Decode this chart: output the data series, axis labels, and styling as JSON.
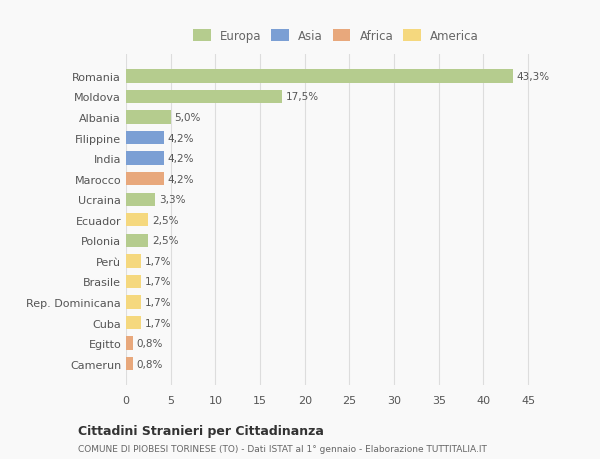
{
  "categories": [
    "Romania",
    "Moldova",
    "Albania",
    "Filippine",
    "India",
    "Marocco",
    "Ucraina",
    "Ecuador",
    "Polonia",
    "Perù",
    "Brasile",
    "Rep. Dominicana",
    "Cuba",
    "Egitto",
    "Camerun"
  ],
  "values": [
    43.3,
    17.5,
    5.0,
    4.2,
    4.2,
    4.2,
    3.3,
    2.5,
    2.5,
    1.7,
    1.7,
    1.7,
    1.7,
    0.8,
    0.8
  ],
  "labels": [
    "43,3%",
    "17,5%",
    "5,0%",
    "4,2%",
    "4,2%",
    "4,2%",
    "3,3%",
    "2,5%",
    "2,5%",
    "1,7%",
    "1,7%",
    "1,7%",
    "1,7%",
    "0,8%",
    "0,8%"
  ],
  "colors": [
    "#b5cc8e",
    "#b5cc8e",
    "#b5cc8e",
    "#7b9fd4",
    "#7b9fd4",
    "#e8a87c",
    "#b5cc8e",
    "#f5d87e",
    "#b5cc8e",
    "#f5d87e",
    "#f5d87e",
    "#f5d87e",
    "#f5d87e",
    "#e8a87c",
    "#e8a87c"
  ],
  "legend_labels": [
    "Europa",
    "Asia",
    "Africa",
    "America"
  ],
  "legend_colors": [
    "#b5cc8e",
    "#7b9fd4",
    "#e8a87c",
    "#f5d87e"
  ],
  "title1": "Cittadini Stranieri per Cittadinanza",
  "title2": "COMUNE DI PIOBESI TORINESE (TO) - Dati ISTAT al 1° gennaio - Elaborazione TUTTITALIA.IT",
  "xlim": [
    0,
    47
  ],
  "xticks": [
    0,
    5,
    10,
    15,
    20,
    25,
    30,
    35,
    40,
    45
  ],
  "bg_color": "#f9f9f9",
  "grid_color": "#dddddd",
  "bar_height": 0.65
}
